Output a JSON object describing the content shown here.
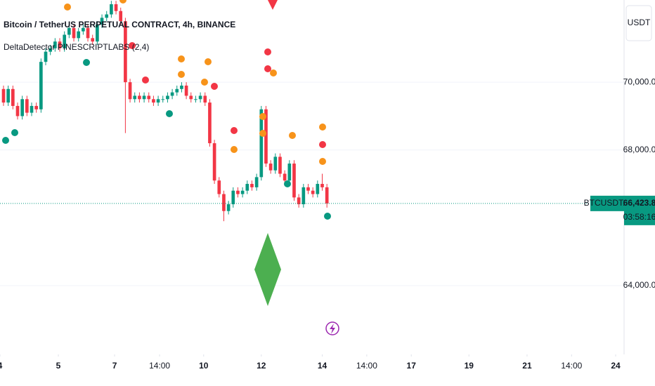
{
  "chart_data": {
    "type": "candlestick",
    "title": "Bitcoin / TetherUS PERPETUAL CONTRACT, 4h, BINANCE",
    "indicator": "DeltaDetector PINESCRIPTLABS (2,4)",
    "currency": "USDT",
    "symbol": "BTCUSDT.P",
    "last_price": {
      "value": 66423.8,
      "label": "66,423.8"
    },
    "countdown": "03:58:16",
    "up_color": "#089981",
    "down_color": "#f23645",
    "x": [
      0,
      1,
      2,
      3,
      4,
      5,
      6,
      7,
      8,
      9,
      10,
      11,
      12,
      13,
      14,
      15,
      16,
      17,
      18,
      19,
      20,
      21,
      22,
      23,
      24,
      25,
      26,
      27,
      28,
      29,
      30,
      31,
      32,
      33,
      34,
      35,
      36,
      37,
      38,
      39,
      40,
      41,
      42,
      43,
      44,
      45,
      46,
      47,
      48,
      49,
      50,
      51,
      52,
      53,
      54,
      55,
      56,
      57,
      58,
      59,
      60,
      61,
      62,
      63,
      64,
      65,
      66,
      67,
      68,
      69
    ],
    "open": [
      69800,
      69400,
      69800,
      69300,
      69000,
      69500,
      69100,
      69300,
      69200,
      70600,
      70900,
      71000,
      71200,
      71000,
      71400,
      71600,
      71300,
      71500,
      71600,
      71300,
      71200,
      71700,
      71900,
      72000,
      72300,
      72100,
      71800,
      70000,
      69500,
      69600,
      69500,
      69600,
      69500,
      69400,
      69500,
      69500,
      69600,
      69700,
      69800,
      69900,
      69600,
      69500,
      69500,
      69600,
      69400,
      68200,
      67100,
      66700,
      66200,
      66400,
      66800,
      66700,
      66800,
      67000,
      66900,
      67200,
      69200,
      67600,
      67400,
      67800,
      67300,
      67100,
      67600,
      66600,
      66400,
      66900,
      66800,
      66700,
      67000,
      66900
    ],
    "high": [
      69900,
      69900,
      69900,
      69400,
      69600,
      69600,
      69400,
      69400,
      70700,
      71000,
      71100,
      71300,
      71300,
      71500,
      71700,
      71700,
      71600,
      71700,
      71700,
      71400,
      71800,
      72000,
      72100,
      72400,
      72400,
      72200,
      71900,
      70100,
      69700,
      69700,
      69700,
      69700,
      69600,
      69600,
      69600,
      69700,
      69800,
      69900,
      70000,
      70000,
      69700,
      69600,
      69700,
      69700,
      69500,
      68300,
      67200,
      66800,
      66500,
      66900,
      66900,
      66900,
      67100,
      67100,
      67300,
      69300,
      69300,
      67700,
      67900,
      67900,
      67400,
      67700,
      67700,
      66700,
      67000,
      67000,
      66900,
      67100,
      67300,
      67000
    ],
    "low": [
      69300,
      69300,
      69200,
      68900,
      68900,
      69000,
      69000,
      69100,
      69100,
      70500,
      70800,
      70900,
      70900,
      70900,
      71300,
      71200,
      71200,
      71400,
      71200,
      71100,
      71100,
      71600,
      71800,
      71900,
      72000,
      71700,
      68500,
      69400,
      69400,
      69400,
      69400,
      69400,
      69300,
      69300,
      69400,
      69400,
      69500,
      69600,
      69700,
      69500,
      69400,
      69400,
      69400,
      69300,
      68100,
      67000,
      66600,
      65900,
      66100,
      66300,
      66600,
      66600,
      66700,
      66800,
      66800,
      67100,
      67500,
      67300,
      67300,
      67200,
      67000,
      67000,
      66500,
      66300,
      66300,
      66700,
      66600,
      66600,
      66800,
      66300
    ],
    "close": [
      69400,
      69800,
      69300,
      69000,
      69500,
      69100,
      69300,
      69200,
      70600,
      70900,
      71000,
      71200,
      71000,
      71400,
      71600,
      71300,
      71500,
      71600,
      71300,
      71200,
      71700,
      71900,
      72000,
      72300,
      72100,
      71800,
      70000,
      69500,
      69600,
      69500,
      69600,
      69500,
      69400,
      69500,
      69500,
      69600,
      69700,
      69800,
      69900,
      69600,
      69500,
      69500,
      69600,
      69400,
      68200,
      67100,
      66700,
      66200,
      66400,
      66800,
      66700,
      66800,
      67000,
      66900,
      67200,
      69200,
      67600,
      67400,
      67800,
      67300,
      67100,
      67600,
      66600,
      66400,
      66900,
      66800,
      66700,
      67000,
      66900,
      66423.8
    ],
    "xlim": [
      -0.75,
      132.4
    ],
    "xticks": [
      {
        "value": -0.75,
        "label": "4"
      },
      {
        "value": 11.7,
        "label": "5"
      },
      {
        "value": 23.7,
        "label": "7"
      },
      {
        "value": 33.3,
        "label": "14:00"
      },
      {
        "value": 42.7,
        "label": "10"
      },
      {
        "value": 55,
        "label": "12"
      },
      {
        "value": 68,
        "label": "14"
      },
      {
        "value": 77.5,
        "label": "14:00"
      },
      {
        "value": 87,
        "label": "17"
      },
      {
        "value": 99.3,
        "label": "19"
      },
      {
        "value": 111.7,
        "label": "21"
      },
      {
        "value": 121.2,
        "label": "14:00"
      },
      {
        "value": 130.6,
        "label": "24"
      }
    ],
    "ylim": [
      61970,
      72425
    ],
    "yticks": [
      {
        "value": 64000,
        "label": "64,000.0"
      },
      {
        "value": 68000,
        "label": "68,000.0"
      },
      {
        "value": 70000,
        "label": "70,000.0"
      }
    ],
    "grid": true
  }
}
